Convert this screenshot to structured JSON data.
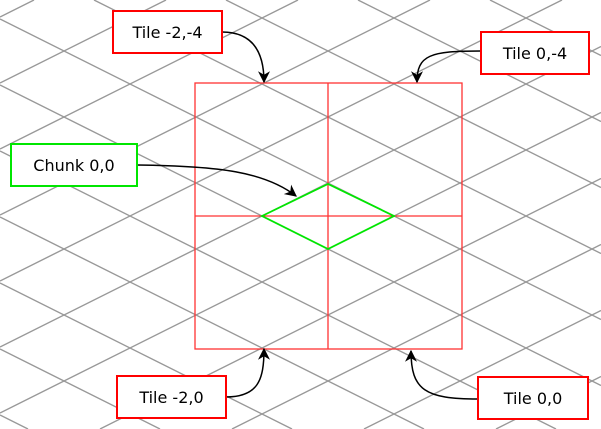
{
  "labels": {
    "tile_m2_m4": "Tile -2,-4",
    "tile_0_m4": "Tile 0,-4",
    "chunk_0_0": "Chunk 0,0",
    "tile_m2_0": "Tile -2,0",
    "tile_0_0": "Tile 0,0"
  },
  "colors": {
    "grid": "#999999",
    "tile": "#ff0000",
    "chunk": "#00e600",
    "arrow": "#000000"
  }
}
